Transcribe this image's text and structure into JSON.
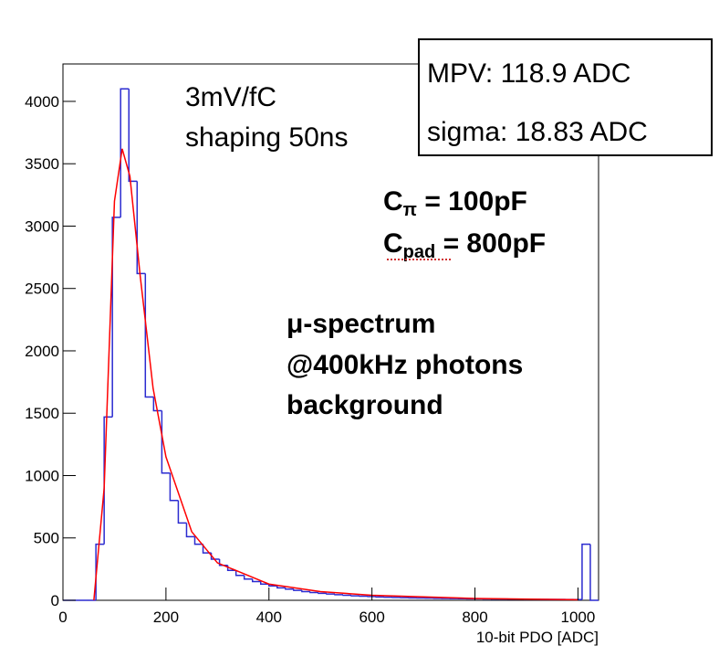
{
  "chart_data": {
    "type": "histogram",
    "x_label": "10-bit PDO [ADC]",
    "color": "#2b2bd0",
    "bins": [
      0,
      16,
      32,
      48,
      64,
      80,
      96,
      112,
      128,
      144,
      160,
      176,
      192,
      208,
      224,
      240,
      256,
      272,
      288,
      304,
      320,
      336,
      352,
      368,
      384,
      400,
      416,
      432,
      448,
      464,
      480,
      496,
      512,
      528,
      544,
      560,
      576,
      592,
      608,
      624,
      640,
      656,
      672,
      688,
      704,
      720,
      736,
      752,
      768,
      784,
      800,
      816,
      832,
      848,
      864,
      880,
      896,
      912,
      928,
      944,
      960,
      976,
      992,
      1008,
      1024,
      1040
    ],
    "values": [
      0,
      0,
      0,
      0,
      450,
      1470,
      3070,
      4100,
      3360,
      2620,
      1630,
      1520,
      1020,
      800,
      620,
      510,
      450,
      380,
      330,
      280,
      240,
      200,
      170,
      150,
      130,
      115,
      100,
      90,
      80,
      70,
      62,
      56,
      50,
      45,
      40,
      36,
      33,
      30,
      27,
      25,
      23,
      21,
      19,
      18,
      17,
      16,
      15,
      14,
      13,
      12,
      12,
      11,
      10,
      10,
      9,
      9,
      8,
      8,
      7,
      7,
      7,
      6,
      6,
      450,
      0
    ],
    "fit": {
      "color": "#ff0000",
      "x": [
        60,
        80,
        100,
        115,
        130,
        150,
        175,
        200,
        250,
        300,
        400,
        500,
        600,
        800,
        1000
      ],
      "y": [
        0,
        900,
        3200,
        3620,
        3400,
        2600,
        1700,
        1150,
        550,
        300,
        130,
        70,
        40,
        15,
        5
      ]
    },
    "xlim": [
      0,
      1040
    ],
    "ylim": [
      0,
      4300
    ],
    "xticks": [
      0,
      200,
      400,
      600,
      800,
      1000
    ],
    "yticks": [
      0,
      500,
      1000,
      1500,
      2000,
      2500,
      3000,
      3500,
      4000
    ],
    "annotations": {
      "gain": "3mV/fC",
      "shaping": "shaping 50ns",
      "c_pi": {
        "base": "C",
        "sub": "π",
        "rest": " = 100pF"
      },
      "c_pad": {
        "base": "C",
        "sub": "pad",
        "rest": " = 800pF"
      },
      "spectrum": [
        "μ-spectrum",
        "@400kHz photons",
        "background"
      ]
    },
    "stats": {
      "mpv": "MPV: 118.9 ADC",
      "sigma": "sigma: 18.83 ADC"
    }
  }
}
